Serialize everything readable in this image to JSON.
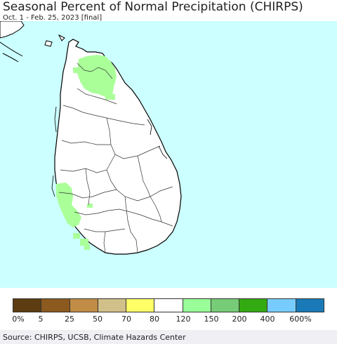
{
  "header": {
    "title": "Seasonal Percent of Normal Precipitation (CHIRPS)",
    "subtitle": "Oct. 1 - Feb. 25, 2023 [final]"
  },
  "map": {
    "region": "Sri Lanka",
    "ocean_color": "#ccffff",
    "land_color": "#ffffff",
    "above_normal_color": "#aaff99"
  },
  "legend": {
    "colors": [
      "#5c3d12",
      "#8c5a1f",
      "#c08c46",
      "#d2c08a",
      "#ffff66",
      "#ffffff",
      "#99ff99",
      "#77cc77",
      "#33aa11",
      "#77ccff",
      "#1a7ab8"
    ],
    "labels": [
      "0%",
      "5",
      "25",
      "50",
      "70",
      "80",
      "120",
      "150",
      "200",
      "400",
      "600%"
    ]
  },
  "footer": {
    "source": "Source: CHIRPS, UCSB, Climate Hazards Center"
  }
}
